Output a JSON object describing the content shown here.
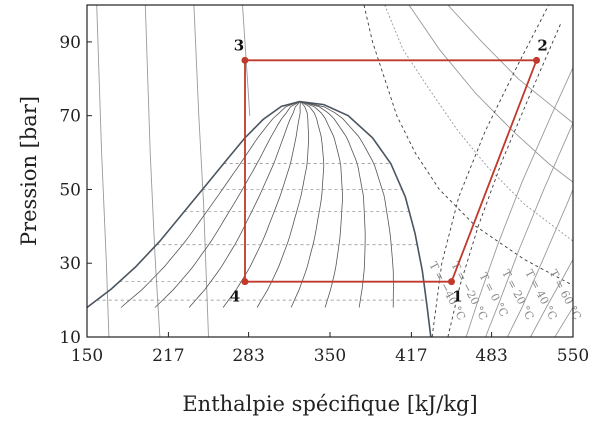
{
  "chart_data": {
    "type": "line",
    "title": "",
    "xlabel": "Enthalpie spécifique [kJ/kg]",
    "ylabel": "Pression [bar]",
    "xlim": [
      150,
      550
    ],
    "ylim": [
      10,
      100
    ],
    "xticks": [
      150,
      217,
      283,
      350,
      417,
      483,
      550
    ],
    "yticks": [
      10,
      30,
      50,
      70,
      90
    ],
    "grid": false,
    "colors": {
      "cycle": "#c0392b",
      "dome": "#4a5560",
      "isotherm": "#3a3a3a",
      "isotherm_light": "#9a9a9a",
      "quality": "#555555"
    },
    "series": [
      {
        "kind": "cycle",
        "points": [
          {
            "label": "1",
            "h": 450,
            "p": 25
          },
          {
            "label": "2",
            "h": 520,
            "p": 85
          },
          {
            "label": "3",
            "h": 280,
            "p": 85
          },
          {
            "label": "4",
            "h": 280,
            "p": 25
          }
        ]
      },
      {
        "kind": "saturation-dome",
        "liquid": [
          [
            150,
            18
          ],
          [
            170,
            23
          ],
          [
            190,
            29
          ],
          [
            210,
            36
          ],
          [
            230,
            44
          ],
          [
            250,
            52
          ],
          [
            265,
            58
          ],
          [
            280,
            64
          ],
          [
            295,
            69
          ],
          [
            310,
            72.5
          ],
          [
            325,
            73.8
          ]
        ],
        "vapor": [
          [
            325,
            73.8
          ],
          [
            345,
            73
          ],
          [
            365,
            70
          ],
          [
            385,
            64
          ],
          [
            400,
            57
          ],
          [
            412,
            48
          ],
          [
            420,
            38
          ],
          [
            426,
            28
          ],
          [
            430,
            18
          ],
          [
            433,
            10
          ]
        ]
      }
    ],
    "isotherm_labels": [
      "T = −40 °C",
      "T = −20 °C",
      "T = 0 °C",
      "T = 20 °C",
      "T = 40 °C",
      "T = 60 °C"
    ]
  }
}
